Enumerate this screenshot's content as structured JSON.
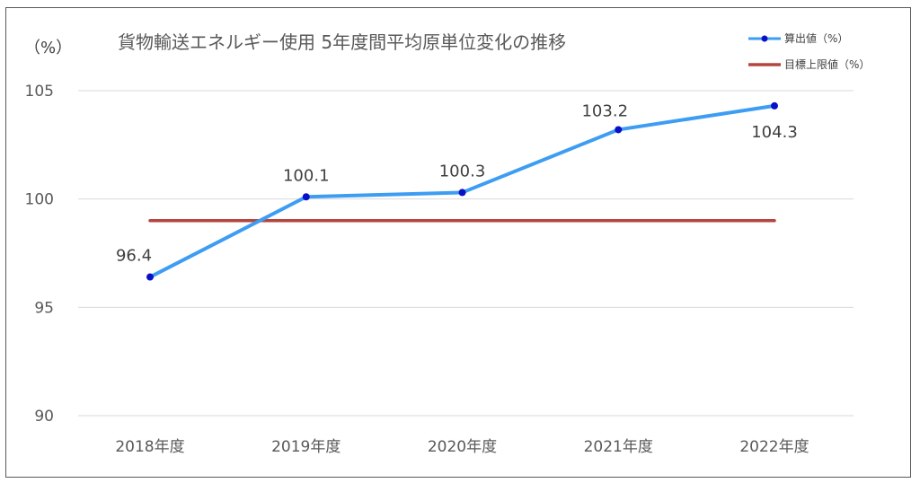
{
  "chart_data": {
    "type": "line",
    "title": "貨物輸送エネルギー使用 5年度間平均原単位変化の推移",
    "ylabel": "（%）",
    "categories": [
      "2018年度",
      "2019年度",
      "2020年度",
      "2021年度",
      "2022年度"
    ],
    "ylim": [
      90,
      105
    ],
    "yticks": [
      90,
      95,
      100,
      105
    ],
    "grid": true,
    "legend_position": "top-right",
    "series": [
      {
        "name": "算出値（%）",
        "values": [
          96.4,
          100.1,
          100.3,
          103.2,
          104.3
        ],
        "labels": [
          "96.4",
          "100.1",
          "100.3",
          "103.2",
          "104.3"
        ],
        "color": "#3d9df2",
        "marker_color": "#0a10c8"
      },
      {
        "name": "目標上限値（%）",
        "values": [
          99,
          99,
          99,
          99,
          99
        ],
        "color": "#b5453f"
      }
    ]
  }
}
